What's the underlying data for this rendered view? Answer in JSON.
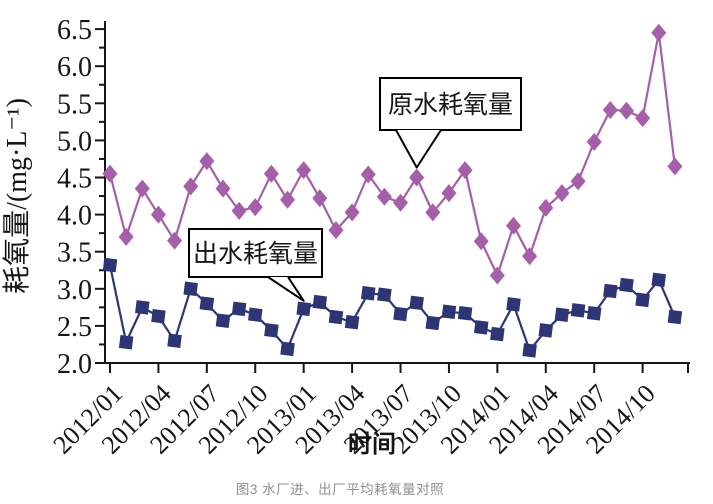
{
  "figure": {
    "caption": "图3 水厂进、出厂平均耗氧量对照"
  },
  "chart_data": {
    "type": "line",
    "title": "",
    "xlabel": "时间",
    "ylabel": "耗氧量/(mg·L⁻¹)",
    "ylim": [
      2.0,
      6.5
    ],
    "ytick_step": 0.5,
    "grid": false,
    "legend_position": "callout-boxes-inside-plot",
    "ytick_labels": [
      "2.0",
      "2.5",
      "3.0",
      "3.5",
      "4.0",
      "4.5",
      "5.0",
      "5.5",
      "6.0",
      "6.5"
    ],
    "x": [
      "2012/01",
      "2012/02",
      "2012/03",
      "2012/04",
      "2012/05",
      "2012/06",
      "2012/07",
      "2012/08",
      "2012/09",
      "2012/10",
      "2012/11",
      "2012/12",
      "2013/01",
      "2013/02",
      "2013/03",
      "2013/04",
      "2013/05",
      "2013/06",
      "2013/07",
      "2013/08",
      "2013/09",
      "2013/10",
      "2013/11",
      "2013/12",
      "2014/01",
      "2014/02",
      "2014/03",
      "2014/04",
      "2014/05",
      "2014/06",
      "2014/07",
      "2014/08",
      "2014/09",
      "2014/10",
      "2014/11",
      "2014/12"
    ],
    "xtick_months": [
      "2012/01",
      "2012/04",
      "2012/07",
      "2012/10",
      "2013/01",
      "2013/04",
      "2013/07",
      "2013/10",
      "2014/01",
      "2014/04",
      "2014/07",
      "2014/10"
    ],
    "series": [
      {
        "id": "raw-water",
        "name": "原水耗氧量",
        "marker": "diamond",
        "color": "#a55fa8",
        "values": [
          4.55,
          3.7,
          4.35,
          4.0,
          3.65,
          4.38,
          4.72,
          4.35,
          4.05,
          4.1,
          4.55,
          4.2,
          4.6,
          4.22,
          3.79,
          4.03,
          4.54,
          4.24,
          4.16,
          4.5,
          4.03,
          4.29,
          4.6,
          3.64,
          3.18,
          3.85,
          3.44,
          4.09,
          4.29,
          4.45,
          4.98,
          5.41,
          5.4,
          5.3,
          6.45,
          4.65
        ]
      },
      {
        "id": "outlet-water",
        "name": "出水耗氧量",
        "marker": "square",
        "color": "#2e3575",
        "values": [
          3.32,
          2.28,
          2.75,
          2.63,
          2.3,
          3.0,
          2.8,
          2.57,
          2.73,
          2.65,
          2.44,
          2.19,
          2.73,
          2.82,
          2.62,
          2.55,
          2.94,
          2.92,
          2.66,
          2.81,
          2.54,
          2.69,
          2.67,
          2.48,
          2.39,
          2.79,
          2.17,
          2.44,
          2.65,
          2.71,
          2.67,
          2.97,
          3.05,
          2.85,
          3.12,
          2.62
        ]
      }
    ],
    "annotations": [
      {
        "text": "原水耗氧量",
        "series": 0,
        "target_x": "2013/08"
      },
      {
        "text": "出水耗氧量",
        "series": 1,
        "target_x": "2013/01"
      }
    ]
  }
}
